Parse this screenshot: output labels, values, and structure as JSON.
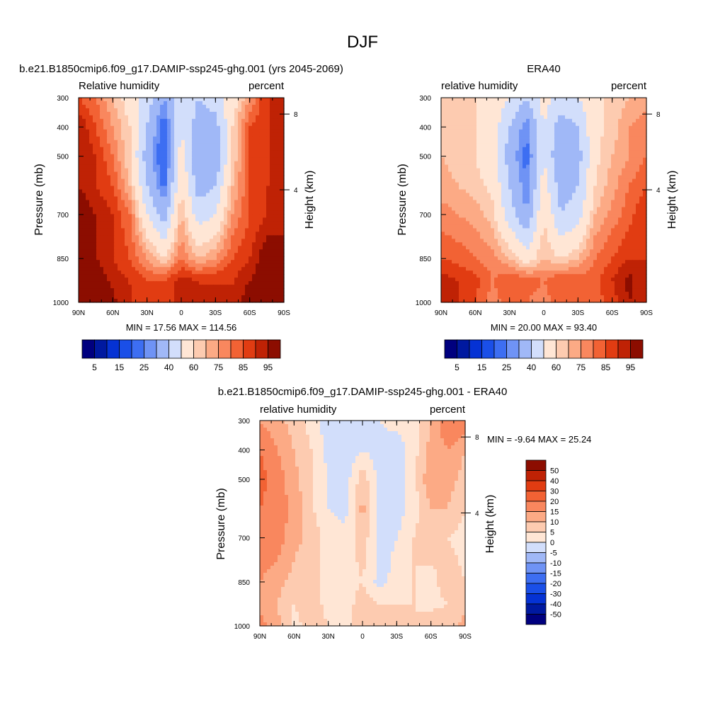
{
  "figure": {
    "title": "DJF"
  },
  "chart_data": [
    {
      "type": "heatmap",
      "id": "model",
      "title": "b.e21.B1850cmip6.f09_g17.DAMIP-ssp245-ghg.001 (yrs 2045-2069)",
      "left_label": "Relative humidity",
      "right_label": "percent",
      "xlabel": "",
      "ylabel": "Pressure (mb)",
      "ylabel_right": "Height (km)",
      "x_ticks": [
        "90N",
        "60N",
        "30N",
        "0",
        "30S",
        "60S",
        "90S"
      ],
      "y_ticks": [
        "300",
        "400",
        "500",
        "700",
        "850",
        "1000"
      ],
      "y_ticks_right": [
        "8",
        "4"
      ],
      "stats": "MIN =  17.56  MAX = 114.56",
      "levels": [
        5,
        10,
        15,
        20,
        25,
        30,
        40,
        50,
        60,
        65,
        70,
        75,
        80,
        85,
        90,
        95
      ],
      "colorbar_labels": [
        "5",
        "15",
        "25",
        "40",
        "60",
        "75",
        "85",
        "95"
      ],
      "colors": [
        "#00007f",
        "#0019a0",
        "#0532d4",
        "#1a4fe8",
        "#3d6ef2",
        "#6f93f5",
        "#a0b8f7",
        "#d2defb",
        "#ffe6d5",
        "#fdcbb0",
        "#fcaa85",
        "#f9875e",
        "#f26234",
        "#e13c12",
        "#bf2205",
        "#8c0d00"
      ],
      "grid_x": [
        90,
        75,
        60,
        45,
        30,
        15,
        0,
        -15,
        -30,
        -45,
        -60,
        -75,
        -90
      ],
      "grid_p": [
        300,
        400,
        500,
        600,
        700,
        850,
        925,
        1000
      ],
      "grid_values": [
        [
          80,
          75,
          65,
          55,
          45,
          30,
          50,
          40,
          45,
          55,
          70,
          85,
          85
        ],
        [
          90,
          80,
          70,
          60,
          40,
          20,
          50,
          35,
          35,
          60,
          80,
          85,
          85
        ],
        [
          90,
          85,
          75,
          60,
          35,
          18,
          55,
          30,
          30,
          60,
          80,
          85,
          85
        ],
        [
          90,
          85,
          80,
          65,
          40,
          22,
          60,
          35,
          40,
          65,
          80,
          85,
          85
        ],
        [
          95,
          90,
          85,
          75,
          50,
          35,
          65,
          45,
          50,
          70,
          80,
          85,
          90
        ],
        [
          95,
          90,
          85,
          80,
          70,
          60,
          75,
          65,
          70,
          80,
          85,
          95,
          90
        ],
        [
          100,
          95,
          88,
          85,
          80,
          80,
          88,
          85,
          85,
          85,
          90,
          95,
          95
        ],
        [
          110,
          100,
          92,
          85,
          85,
          80,
          88,
          85,
          85,
          85,
          95,
          100,
          100
        ]
      ]
    },
    {
      "type": "heatmap",
      "id": "obs",
      "title": "ERA40",
      "left_label": "relative humidity",
      "right_label": "percent",
      "xlabel": "",
      "ylabel": "Pressure (mb)",
      "ylabel_right": "Height (km)",
      "x_ticks": [
        "90N",
        "60N",
        "30N",
        "0",
        "30S",
        "60S",
        "90S"
      ],
      "y_ticks": [
        "300",
        "400",
        "500",
        "700",
        "850",
        "1000"
      ],
      "y_ticks_right": [
        "8",
        "4"
      ],
      "stats": "MIN =  20.00  MAX =  93.40",
      "levels": [
        5,
        10,
        15,
        20,
        25,
        30,
        40,
        50,
        60,
        65,
        70,
        75,
        80,
        85,
        90,
        95
      ],
      "colorbar_labels": [
        "5",
        "15",
        "25",
        "40",
        "60",
        "75",
        "85",
        "95"
      ],
      "colors": [
        "#00007f",
        "#0019a0",
        "#0532d4",
        "#1a4fe8",
        "#3d6ef2",
        "#6f93f5",
        "#a0b8f7",
        "#d2defb",
        "#ffe6d5",
        "#fdcbb0",
        "#fcaa85",
        "#f9875e",
        "#f26234",
        "#e13c12",
        "#bf2205",
        "#8c0d00"
      ],
      "grid_x": [
        90,
        75,
        60,
        45,
        30,
        15,
        0,
        -15,
        -30,
        -45,
        -60,
        -75,
        -90
      ],
      "grid_p": [
        300,
        400,
        500,
        600,
        700,
        850,
        925,
        1000
      ],
      "grid_values": [
        [
          65,
          62,
          60,
          58,
          50,
          40,
          55,
          45,
          50,
          58,
          62,
          65,
          65
        ],
        [
          65,
          62,
          60,
          55,
          40,
          25,
          50,
          35,
          40,
          58,
          62,
          70,
          75
        ],
        [
          65,
          62,
          60,
          55,
          35,
          22,
          50,
          30,
          35,
          58,
          65,
          70,
          75
        ],
        [
          68,
          65,
          62,
          58,
          40,
          25,
          55,
          35,
          40,
          60,
          68,
          75,
          80
        ],
        [
          72,
          70,
          68,
          62,
          45,
          30,
          60,
          40,
          45,
          65,
          72,
          78,
          85
        ],
        [
          80,
          78,
          75,
          72,
          65,
          55,
          65,
          60,
          65,
          75,
          80,
          85,
          85
        ],
        [
          88,
          85,
          82,
          75,
          80,
          78,
          75,
          80,
          78,
          78,
          85,
          92,
          85
        ],
        [
          90,
          85,
          80,
          72,
          78,
          75,
          72,
          80,
          78,
          78,
          82,
          90,
          85
        ]
      ]
    },
    {
      "type": "heatmap",
      "id": "diff",
      "title": "b.e21.B1850cmip6.f09_g17.DAMIP-ssp245-ghg.001 - ERA40",
      "left_label": "relative humidity",
      "right_label": "percent",
      "xlabel": "",
      "ylabel": "Pressure (mb)",
      "ylabel_right": "Height (km)",
      "x_ticks": [
        "90N",
        "60N",
        "30N",
        "0",
        "30S",
        "60S",
        "90S"
      ],
      "y_ticks": [
        "300",
        "400",
        "500",
        "700",
        "850",
        "1000"
      ],
      "y_ticks_right": [
        "8",
        "4"
      ],
      "stats": "MIN =  -9.64  MAX =  25.24",
      "levels": [
        -50,
        -40,
        -30,
        -20,
        -15,
        -10,
        -5,
        0,
        5,
        10,
        15,
        20,
        30,
        40,
        50
      ],
      "colorbar_labels": [
        "50",
        "40",
        "30",
        "20",
        "15",
        "10",
        "5",
        "0",
        "-5",
        "-10",
        "-15",
        "-20",
        "-30",
        "-40",
        "-50"
      ],
      "colors": [
        "#00007f",
        "#0019a0",
        "#0532d4",
        "#1a4fe8",
        "#3d6ef2",
        "#6f93f5",
        "#a0b8f7",
        "#d2defb",
        "#ffe6d5",
        "#fdcbb0",
        "#fcaa85",
        "#f9875e",
        "#f26234",
        "#e13c12",
        "#bf2205",
        "#8c0d00"
      ],
      "grid_x": [
        90,
        75,
        60,
        45,
        30,
        15,
        0,
        -15,
        -30,
        -45,
        -60,
        -75,
        -90
      ],
      "grid_p": [
        300,
        400,
        500,
        600,
        700,
        850,
        925,
        1000
      ],
      "grid_values": [
        [
          15,
          12,
          8,
          3,
          -3,
          -3,
          -2,
          0,
          2,
          3,
          10,
          20,
          20
        ],
        [
          20,
          15,
          10,
          5,
          -2,
          -3,
          0,
          -2,
          -3,
          3,
          12,
          15,
          10
        ],
        [
          22,
          18,
          12,
          5,
          0,
          -3,
          8,
          -2,
          -3,
          3,
          15,
          12,
          8
        ],
        [
          20,
          17,
          14,
          6,
          0,
          -2,
          12,
          -2,
          -3,
          3,
          10,
          10,
          5
        ],
        [
          20,
          18,
          12,
          8,
          3,
          2,
          8,
          -2,
          0,
          5,
          8,
          5,
          3
        ],
        [
          15,
          12,
          8,
          5,
          5,
          2,
          5,
          -2,
          2,
          5,
          3,
          8,
          5
        ],
        [
          12,
          10,
          5,
          8,
          3,
          2,
          8,
          5,
          5,
          5,
          3,
          5,
          8
        ],
        [
          18,
          12,
          3,
          8,
          5,
          2,
          10,
          5,
          5,
          5,
          10,
          8,
          12
        ]
      ]
    }
  ]
}
